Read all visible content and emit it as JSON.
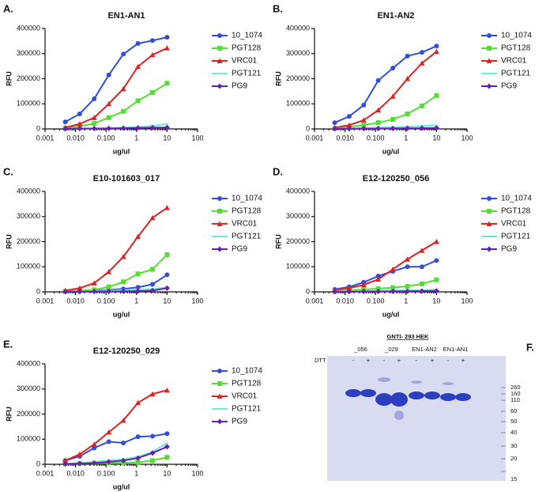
{
  "chart_data": [
    {
      "type": "line",
      "panel": "A.",
      "title": "EN1-AN1",
      "xlabel": "ug/ul",
      "ylabel": "RFU",
      "xscale": "log",
      "x": [
        0.0046,
        0.0137,
        0.041,
        0.123,
        0.37,
        1.11,
        3.33,
        10
      ],
      "xlim": [
        0.001,
        100
      ],
      "xticks": [
        {
          "value": 0.001,
          "label": "0.001"
        },
        {
          "value": 0.01,
          "label": "0.010"
        },
        {
          "value": 0.1,
          "label": "0.100"
        },
        1,
        10,
        100
      ],
      "ylim": [
        0,
        400000
      ],
      "yticks": [
        0,
        100000,
        200000,
        300000,
        400000
      ],
      "series": [
        {
          "name": "10_1074",
          "color": "#2f4fd8",
          "marker": "circle",
          "values": [
            28000,
            60000,
            120000,
            215000,
            298000,
            340000,
            352000,
            365000
          ]
        },
        {
          "name": "PGT128",
          "color": "#55dd33",
          "marker": "square",
          "values": [
            3000,
            10000,
            22000,
            45000,
            70000,
            112000,
            145000,
            182000
          ]
        },
        {
          "name": "VRC01",
          "color": "#dd2222",
          "marker": "triangle",
          "values": [
            5000,
            20000,
            45000,
            100000,
            160000,
            248000,
            295000,
            322000
          ]
        },
        {
          "name": "PGT121",
          "color": "#66eedd",
          "marker": "none",
          "values": [
            1000,
            1000,
            2000,
            3000,
            5000,
            8000,
            12000,
            20000
          ]
        },
        {
          "name": "PG9",
          "color": "#6622aa",
          "marker": "diamond",
          "values": [
            500,
            1000,
            1500,
            2000,
            3000,
            4000,
            5000,
            6000
          ]
        }
      ]
    },
    {
      "type": "line",
      "panel": "B.",
      "title": "EN1-AN2",
      "xlabel": "ug/ul",
      "ylabel": "RFU",
      "xscale": "log",
      "x": [
        0.0046,
        0.0137,
        0.041,
        0.123,
        0.37,
        1.11,
        3.33,
        10
      ],
      "xlim": [
        0.001,
        100
      ],
      "xticks": [
        {
          "value": 0.001,
          "label": "0.001"
        },
        {
          "value": 0.01,
          "label": "0.010"
        },
        {
          "value": 0.1,
          "label": "0.100"
        },
        1,
        10,
        100
      ],
      "ylim": [
        0,
        400000
      ],
      "yticks": [
        0,
        100000,
        200000,
        300000,
        400000
      ],
      "series": [
        {
          "name": "10_1074",
          "color": "#2f4fd8",
          "marker": "circle",
          "values": [
            25000,
            50000,
            95000,
            193000,
            242000,
            290000,
            305000,
            330000
          ]
        },
        {
          "name": "PGT128",
          "color": "#55dd33",
          "marker": "square",
          "values": [
            2000,
            8000,
            15000,
            25000,
            38000,
            60000,
            92000,
            133000
          ]
        },
        {
          "name": "VRC01",
          "color": "#dd2222",
          "marker": "triangle",
          "values": [
            5000,
            15000,
            35000,
            75000,
            130000,
            200000,
            262000,
            308000
          ]
        },
        {
          "name": "PGT121",
          "color": "#66eedd",
          "marker": "none",
          "values": [
            1000,
            2000,
            3000,
            5000,
            7000,
            9000,
            12000,
            15000
          ]
        },
        {
          "name": "PG9",
          "color": "#6622aa",
          "marker": "diamond",
          "values": [
            500,
            800,
            1000,
            1500,
            2000,
            2500,
            3000,
            4000
          ]
        }
      ]
    },
    {
      "type": "line",
      "panel": "C.",
      "title": "E10-101603_017",
      "xlabel": "ug/ul",
      "ylabel": "RFU",
      "xscale": "log",
      "x": [
        0.0046,
        0.0137,
        0.041,
        0.123,
        0.37,
        1.11,
        3.33,
        10
      ],
      "xlim": [
        0.001,
        100
      ],
      "xticks": [
        {
          "value": 0.001,
          "label": "0.001"
        },
        {
          "value": 0.01,
          "label": "0.010"
        },
        {
          "value": 0.1,
          "label": "0.100"
        },
        1,
        10,
        100
      ],
      "ylim": [
        0,
        400000
      ],
      "yticks": [
        0,
        100000,
        200000,
        300000,
        400000
      ],
      "series": [
        {
          "name": "10_1074",
          "color": "#2f4fd8",
          "marker": "circle",
          "values": [
            3000,
            4000,
            5000,
            8000,
            12000,
            18000,
            30000,
            68000
          ]
        },
        {
          "name": "PGT128",
          "color": "#55dd33",
          "marker": "square",
          "values": [
            2000,
            5000,
            8000,
            20000,
            40000,
            72000,
            90000,
            148000
          ]
        },
        {
          "name": "VRC01",
          "color": "#dd2222",
          "marker": "triangle",
          "values": [
            5000,
            15000,
            35000,
            80000,
            140000,
            220000,
            295000,
            335000
          ]
        },
        {
          "name": "PGT121",
          "color": "#66eedd",
          "marker": "none",
          "values": [
            1000,
            2000,
            3000,
            5000,
            7000,
            9000,
            12000,
            18000
          ]
        },
        {
          "name": "PG9",
          "color": "#6622aa",
          "marker": "diamond",
          "values": [
            500,
            800,
            1000,
            1500,
            2000,
            3000,
            5000,
            15000
          ]
        }
      ]
    },
    {
      "type": "line",
      "panel": "D.",
      "title": "E12-120250_056",
      "xlabel": "ug/ul",
      "ylabel": "RFU",
      "xscale": "log",
      "x": [
        0.0046,
        0.0137,
        0.041,
        0.123,
        0.37,
        1.11,
        3.33,
        10
      ],
      "xlim": [
        0.001,
        100
      ],
      "xticks": [
        {
          "value": 0.001,
          "label": "0.001"
        },
        {
          "value": 0.01,
          "label": "0.010"
        },
        {
          "value": 0.1,
          "label": "0.100"
        },
        1,
        10,
        100
      ],
      "ylim": [
        0,
        400000
      ],
      "yticks": [
        0,
        100000,
        200000,
        300000,
        400000
      ],
      "series": [
        {
          "name": "10_1074",
          "color": "#2f4fd8",
          "marker": "circle",
          "values": [
            10000,
            20000,
            38000,
            63000,
            82000,
            100000,
            100000,
            125000
          ]
        },
        {
          "name": "PGT128",
          "color": "#55dd33",
          "marker": "square",
          "values": [
            3000,
            6000,
            9000,
            13000,
            17000,
            22000,
            32000,
            48000
          ]
        },
        {
          "name": "VRC01",
          "color": "#dd2222",
          "marker": "triangle",
          "values": [
            8000,
            15000,
            28000,
            50000,
            90000,
            130000,
            165000,
            200000
          ]
        },
        {
          "name": "PGT121",
          "color": "#66eedd",
          "marker": "none",
          "values": [
            1000,
            2000,
            3000,
            4000,
            5000,
            6000,
            7000,
            9000
          ]
        },
        {
          "name": "PG9",
          "color": "#6622aa",
          "marker": "diamond",
          "values": [
            500,
            800,
            1000,
            1500,
            2000,
            2500,
            3000,
            4000
          ]
        }
      ]
    },
    {
      "type": "line",
      "panel": "E.",
      "title": "E12-120250_029",
      "xlabel": "ug/ul",
      "ylabel": "RFU",
      "xscale": "log",
      "x": [
        0.0046,
        0.0137,
        0.041,
        0.123,
        0.37,
        1.11,
        3.33,
        10
      ],
      "xlim": [
        0.001,
        100
      ],
      "xticks": [
        {
          "value": 0.001,
          "label": "0.001"
        },
        {
          "value": 0.01,
          "label": "0.010"
        },
        {
          "value": 0.1,
          "label": "0.100"
        },
        1,
        10,
        100
      ],
      "ylim": [
        0,
        400000
      ],
      "yticks": [
        0,
        100000,
        200000,
        300000,
        400000
      ],
      "series": [
        {
          "name": "10_1074",
          "color": "#2f4fd8",
          "marker": "circle",
          "values": [
            15000,
            32000,
            65000,
            90000,
            85000,
            110000,
            112000,
            122000
          ]
        },
        {
          "name": "PGT128",
          "color": "#55dd33",
          "marker": "square",
          "values": [
            2000,
            3000,
            5000,
            5000,
            6000,
            8000,
            15000,
            28000
          ]
        },
        {
          "name": "VRC01",
          "color": "#dd2222",
          "marker": "triangle",
          "values": [
            15000,
            40000,
            80000,
            128000,
            175000,
            245000,
            280000,
            295000
          ]
        },
        {
          "name": "PGT121",
          "color": "#66eedd",
          "marker": "none",
          "values": [
            2000,
            5000,
            10000,
            15000,
            20000,
            30000,
            50000,
            85000
          ]
        },
        {
          "name": "PG9",
          "color": "#6622aa",
          "marker": "diamond",
          "values": [
            1000,
            3000,
            5000,
            10000,
            15000,
            25000,
            45000,
            70000
          ]
        }
      ]
    }
  ],
  "gel": {
    "panel": "F.",
    "title": "GNTI- 293 HEK",
    "treatment": "DTT",
    "groups": [
      "_056",
      "_029",
      "EN1-AN2",
      "EN1-AN1"
    ],
    "lanes": [
      "-",
      "+",
      "-",
      "+",
      "-",
      "+",
      "-",
      "+"
    ],
    "markers": [
      "260",
      "160",
      "110",
      "60",
      "50",
      "40",
      "30",
      "20",
      "15"
    ]
  }
}
